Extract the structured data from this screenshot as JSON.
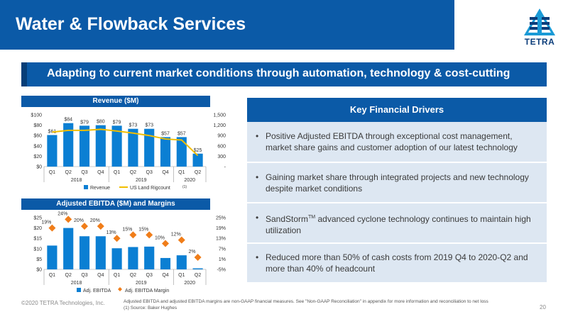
{
  "title": "Water & Flowback Services",
  "logo": {
    "text": "TETRA"
  },
  "subtitle": "Adapting to current market conditions through automation, technology & cost-cutting",
  "revenue_chart": {
    "header": "Revenue ($M)",
    "note": "(1)"
  },
  "ebitda_chart": {
    "header": "Adjusted EBITDA ($M) and Margins"
  },
  "chart_data": [
    {
      "type": "bar",
      "title": "Revenue ($M)",
      "categories": [
        "Q1",
        "Q2",
        "Q3",
        "Q4",
        "Q1",
        "Q2",
        "Q3",
        "Q4",
        "Q1",
        "Q2"
      ],
      "groups": [
        {
          "label": "2018",
          "span": 4
        },
        {
          "label": "2019",
          "span": 4
        },
        {
          "label": "2020",
          "span": 2
        }
      ],
      "series": [
        {
          "name": "Revenue",
          "type": "bar",
          "axis": "left",
          "values": [
            61,
            84,
            79,
            80,
            79,
            73,
            73,
            57,
            57,
            25
          ],
          "labels": [
            "$61",
            "$84",
            "$79",
            "$80",
            "$79",
            "$73",
            "$73",
            "$57",
            "$57",
            "$25"
          ]
        },
        {
          "name": "US Land Rigcount",
          "type": "line",
          "axis": "right",
          "values": [
            1000,
            1050,
            1050,
            1080,
            1030,
            970,
            900,
            800,
            770,
            320
          ]
        }
      ],
      "ylim_left": [
        0,
        100
      ],
      "yticks_left": [
        "$0",
        "$20",
        "$40",
        "$60",
        "$80",
        "$100"
      ],
      "ylim_right": [
        0,
        1500
      ],
      "yticks_right": [
        "-",
        "300",
        "600",
        "900",
        "1,200",
        "1,500"
      ],
      "legend_position": "bottom",
      "colors": {
        "bar": "#0b7fd3",
        "line": "#f2be00"
      }
    },
    {
      "type": "bar",
      "title": "Adjusted EBITDA ($M) and Margins",
      "categories": [
        "Q1",
        "Q2",
        "Q3",
        "Q4",
        "Q1",
        "Q2",
        "Q3",
        "Q4",
        "Q1",
        "Q2"
      ],
      "groups": [
        {
          "label": "2018",
          "span": 4
        },
        {
          "label": "2019",
          "span": 4
        },
        {
          "label": "2020",
          "span": 2
        }
      ],
      "series": [
        {
          "name": "Adj. EBITDA",
          "type": "bar",
          "axis": "left",
          "values": [
            11.5,
            20,
            16,
            16,
            10.2,
            10.8,
            11,
            5.5,
            6.8,
            0.5
          ]
        },
        {
          "name": "Adj. EBITDA Margin",
          "type": "scatter",
          "axis": "right",
          "values": [
            19,
            24,
            20,
            20,
            13,
            15,
            15,
            10,
            12,
            2
          ],
          "labels": [
            "19%",
            "24%",
            "20%",
            "20%",
            "13%",
            "15%",
            "15%",
            "10%",
            "12%",
            "2%"
          ]
        }
      ],
      "ylim_left": [
        0,
        25
      ],
      "yticks_left": [
        "$0",
        "$5",
        "$10",
        "$15",
        "$20",
        "$25"
      ],
      "ylim_right": [
        -5,
        25
      ],
      "yticks_right": [
        "-5%",
        "1%",
        "7%",
        "13%",
        "19%",
        "25%"
      ],
      "legend_position": "bottom",
      "colors": {
        "bar": "#0b7fd3",
        "marker": "#f07d19"
      }
    }
  ],
  "key_drivers": {
    "header": "Key Financial Drivers",
    "items": [
      {
        "text": "Positive Adjusted EBITDA through exceptional cost management, market share gains and customer adoption of our latest technology"
      },
      {
        "text": "Gaining market share through integrated projects and new technology despite market conditions"
      },
      {
        "pre": "SandStorm",
        "sup": "TM",
        "post": " advanced cyclone technology continues to maintain high utilization"
      },
      {
        "text": "Reduced more than 50% of cash costs from 2019 Q4 to 2020-Q2 and more than 40% of headcount"
      }
    ]
  },
  "footer": {
    "copyright": "©2020 TETRA Technologies, Inc.",
    "note1": "Adjusted EBITDA and adjusted EBITDA margins are non-GAAP financial measures. See \"Non-GAAP Reconciliation\" in appendix for more information and reconciliation to net loss",
    "note2": "(1)    Source: Baker Hughes",
    "page": "20"
  }
}
